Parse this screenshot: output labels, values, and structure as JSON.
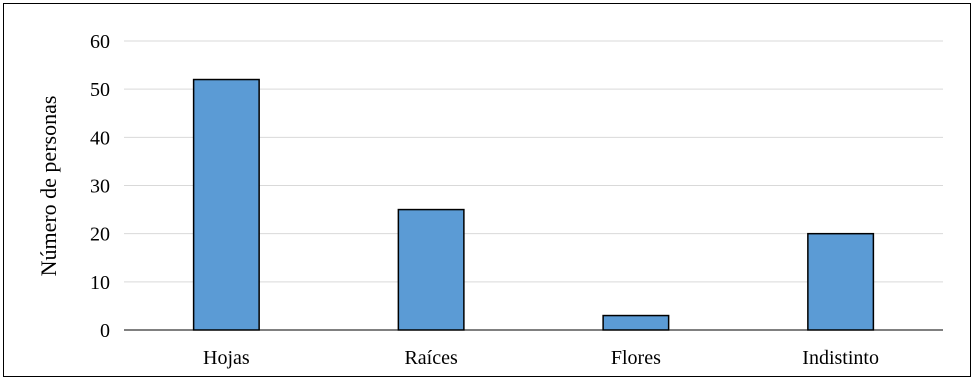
{
  "chart_data": {
    "type": "bar",
    "title": "",
    "xlabel": "",
    "ylabel": "Número de personas",
    "categories": [
      "Hojas",
      "Raíces",
      "Flores",
      "Indistinto"
    ],
    "values": [
      52,
      25,
      3,
      20
    ],
    "ylim": [
      0,
      60
    ],
    "yticks": [
      0,
      10,
      20,
      30,
      40,
      50,
      60
    ],
    "grid": true,
    "legend": "none",
    "colors": {
      "bar_fill": "#5B9BD5",
      "bar_stroke": "#000000",
      "grid": "#D9D9D9",
      "axis": "#000000"
    }
  }
}
